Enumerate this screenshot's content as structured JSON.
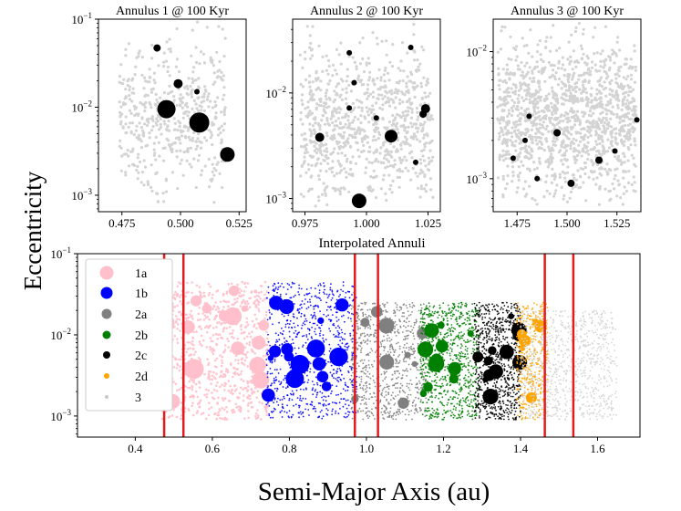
{
  "figure": {
    "ylabel": "Eccentricity",
    "xlabel": "Semi-Major Axis (au)"
  },
  "colors": {
    "background_points": "#d3d3d3",
    "planetesimal_points": "#000000",
    "annulus_boundary": "#e41a1c",
    "1a": "#ffc0cb",
    "1b": "#0000ff",
    "2a": "#808080",
    "2b": "#008000",
    "2c": "#000000",
    "2d": "#ffa500",
    "3": "#d3d3d3"
  },
  "chart_data": [
    {
      "type": "scatter",
      "title": "Annulus 1 @ 100 Kyr",
      "xlabel": "",
      "ylabel": "",
      "xlim": [
        0.465,
        0.528
      ],
      "ylim": [
        0.00065,
        0.1
      ],
      "yscale": "log",
      "x_ticks": [
        "0.475",
        "0.500",
        "0.525"
      ],
      "y_ticks": [
        "10^-3",
        "10^-2",
        "10^-1"
      ],
      "grid": false,
      "series": [
        {
          "points": [
            {
              "x": 0.49,
              "y": 0.047,
              "size": 4
            },
            {
              "x": 0.499,
              "y": 0.0185,
              "size": 5
            },
            {
              "x": 0.507,
              "y": 0.015,
              "size": 3
            },
            {
              "x": 0.494,
              "y": 0.0095,
              "size": 10
            },
            {
              "x": 0.508,
              "y": 0.0067,
              "size": 11
            },
            {
              "x": 0.52,
              "y": 0.0029,
              "size": 8
            }
          ]
        }
      ]
    },
    {
      "type": "scatter",
      "title": "Annulus 2 @ 100 Kyr",
      "xlabel": "",
      "ylabel": "",
      "xlim": [
        0.97,
        1.03
      ],
      "ylim": [
        0.00075,
        0.05
      ],
      "yscale": "log",
      "x_ticks": [
        "0.975",
        "1.000",
        "1.025"
      ],
      "y_ticks": [
        "10^-3",
        "10^-2"
      ],
      "grid": false,
      "series": [
        {
          "points": [
            {
              "x": 0.993,
              "y": 0.024,
              "size": 3
            },
            {
              "x": 1.018,
              "y": 0.027,
              "size": 3
            },
            {
              "x": 0.995,
              "y": 0.0125,
              "size": 3
            },
            {
              "x": 0.993,
              "y": 0.0072,
              "size": 3
            },
            {
              "x": 1.024,
              "y": 0.0071,
              "size": 5
            },
            {
              "x": 1.023,
              "y": 0.0063,
              "size": 4
            },
            {
              "x": 1.004,
              "y": 0.0058,
              "size": 3
            },
            {
              "x": 0.981,
              "y": 0.0038,
              "size": 5
            },
            {
              "x": 1.01,
              "y": 0.0039,
              "size": 7
            },
            {
              "x": 1.02,
              "y": 0.0022,
              "size": 3
            },
            {
              "x": 0.997,
              "y": 0.00095,
              "size": 8
            }
          ]
        }
      ]
    },
    {
      "type": "scatter",
      "title": "Annulus 3 @ 100 Kyr",
      "xlabel": "",
      "ylabel": "",
      "xlim": [
        1.463,
        1.537
      ],
      "ylim": [
        0.00055,
        0.018
      ],
      "yscale": "log",
      "x_ticks": [
        "1.475",
        "1.500",
        "1.525"
      ],
      "y_ticks": [
        "10^-3",
        "10^-2"
      ],
      "grid": false,
      "series": [
        {
          "points": [
            {
              "x": 1.481,
              "y": 0.0031,
              "size": 3
            },
            {
              "x": 1.535,
              "y": 0.0029,
              "size": 3
            },
            {
              "x": 1.495,
              "y": 0.0023,
              "size": 4
            },
            {
              "x": 1.479,
              "y": 0.002,
              "size": 3
            },
            {
              "x": 1.524,
              "y": 0.00165,
              "size": 3
            },
            {
              "x": 1.473,
              "y": 0.00145,
              "size": 3
            },
            {
              "x": 1.516,
              "y": 0.0014,
              "size": 4
            },
            {
              "x": 1.485,
              "y": 0.001,
              "size": 3
            },
            {
              "x": 1.502,
              "y": 0.00092,
              "size": 4
            }
          ]
        }
      ]
    },
    {
      "type": "scatter",
      "title": "Interpolated Annuli",
      "xlabel": "",
      "ylabel": "",
      "xlim": [
        0.25,
        1.71
      ],
      "ylim": [
        0.00055,
        0.1
      ],
      "yscale": "log",
      "x_ticks": [
        "0.4",
        "0.6",
        "0.8",
        "1.0",
        "1.2",
        "1.4",
        "1.6"
      ],
      "y_ticks": [
        "10^-3",
        "10^-2",
        "10^-1"
      ],
      "grid": false,
      "legend": {
        "placement": "left",
        "entries": [
          "1a",
          "1b",
          "2a",
          "2b",
          "2c",
          "2d",
          "3"
        ]
      },
      "vertical_lines": [
        0.475,
        0.525,
        0.97,
        1.03,
        1.463,
        1.537
      ],
      "series": [
        {
          "name": "1a",
          "x_range": [
            0.47,
            0.745
          ],
          "e_range": [
            0.0009,
            0.045
          ]
        },
        {
          "name": "1b",
          "x_range": [
            0.74,
            0.975
          ],
          "e_range": [
            0.0009,
            0.045
          ]
        },
        {
          "name": "2a",
          "x_range": [
            0.96,
            1.155
          ],
          "e_range": [
            0.0009,
            0.025
          ]
        },
        {
          "name": "2b",
          "x_range": [
            1.14,
            1.29
          ],
          "e_range": [
            0.0009,
            0.025
          ]
        },
        {
          "name": "2c",
          "x_range": [
            1.28,
            1.4
          ],
          "e_range": [
            0.0009,
            0.025
          ]
        },
        {
          "name": "2d",
          "x_range": [
            1.39,
            1.47
          ],
          "e_range": [
            0.0009,
            0.025
          ]
        },
        {
          "name": "3",
          "x_range": [
            1.4,
            1.65
          ],
          "e_range": [
            0.0009,
            0.02
          ]
        }
      ]
    }
  ]
}
